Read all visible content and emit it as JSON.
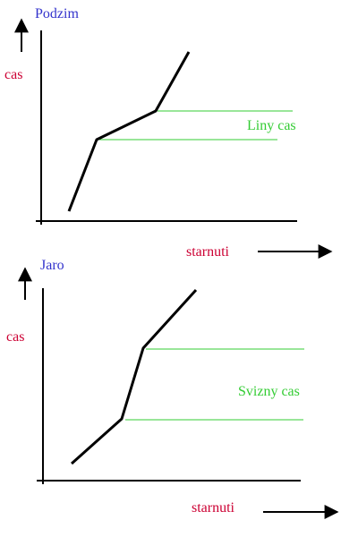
{
  "panels": [
    {
      "title": "Podzim",
      "ylabel": "cas",
      "xlabel": "starnuti",
      "annotation": "Liny cas"
    },
    {
      "title": "Jaro",
      "ylabel": "cas",
      "xlabel": "starnuti",
      "annotation": "Svizny cas"
    }
  ],
  "colors": {
    "title": "#3333cc",
    "axis_label": "#cc0033",
    "annotation": "#33cc33",
    "curve": "#000000",
    "guide_line": "#33cc33"
  }
}
